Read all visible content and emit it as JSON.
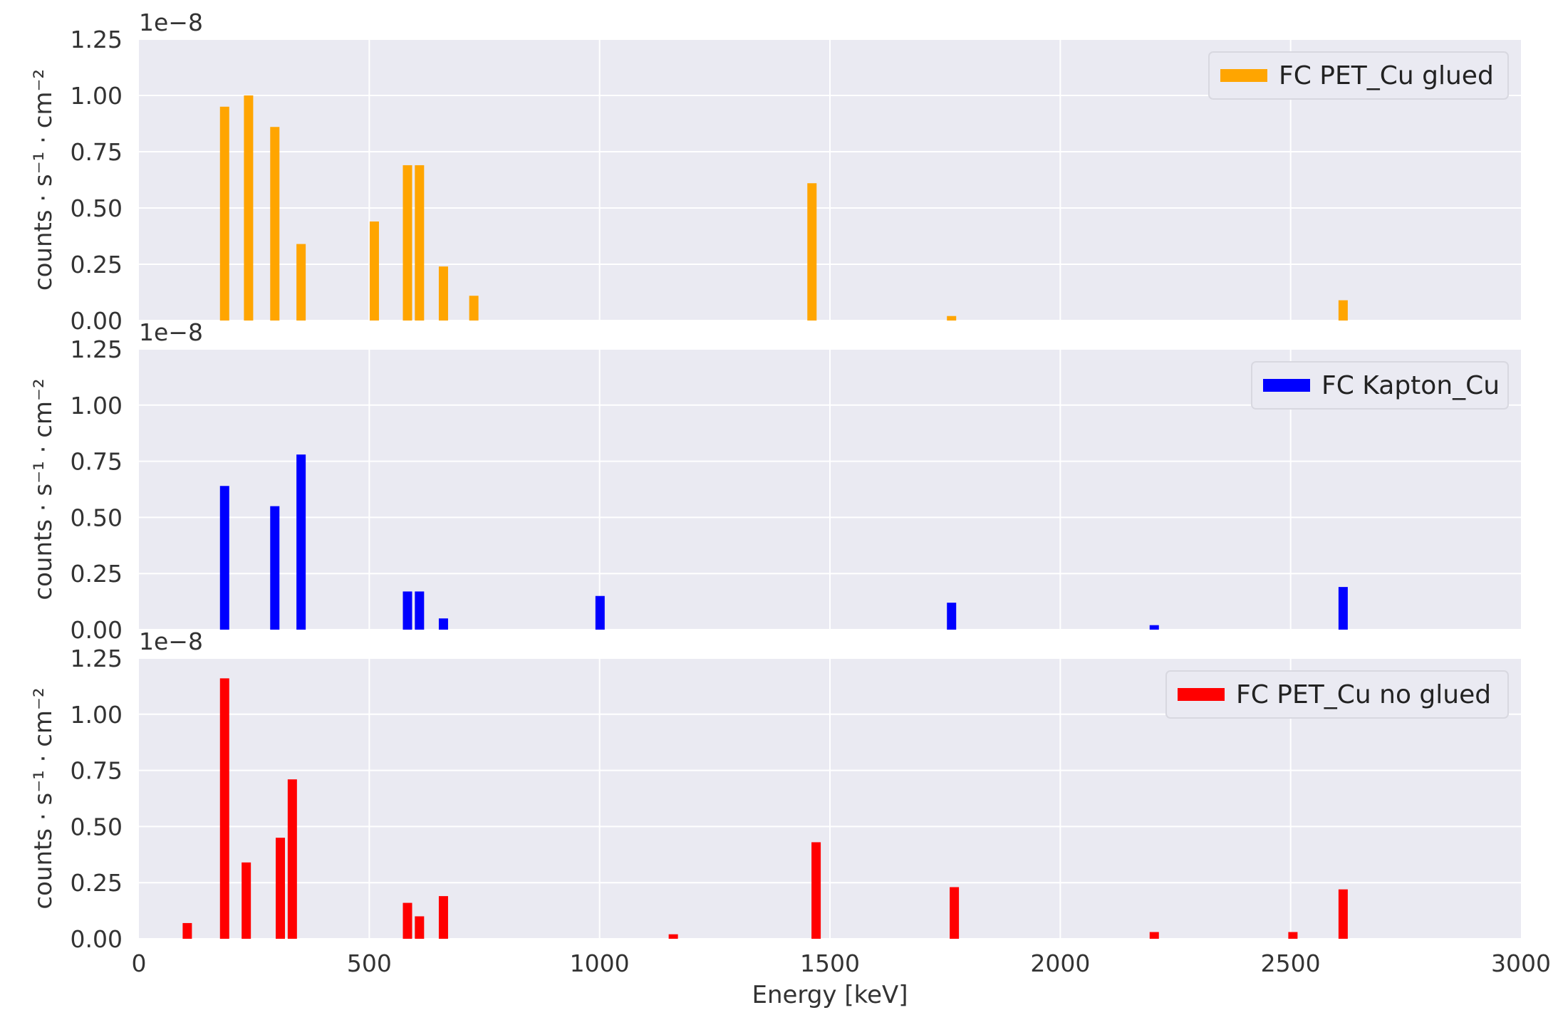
{
  "chart_data": [
    {
      "type": "bar",
      "scale_note": "1e−8",
      "ylabel": "counts · s⁻¹ · cm⁻²",
      "xlabel": "",
      "xlim": [
        0,
        3000
      ],
      "ylim": [
        0,
        1.25
      ],
      "yticks": [
        "0.00",
        "0.25",
        "0.50",
        "0.75",
        "1.00",
        "1.25"
      ],
      "xticks": [],
      "grid": true,
      "legend_position": "top-right",
      "series": [
        {
          "name": "FC PET_Cu glued",
          "color": "#FFA500",
          "x": [
            186,
            238,
            295,
            352,
            511,
            583,
            609,
            661,
            727,
            1461,
            1764,
            2614
          ],
          "values": [
            0.95,
            1.0,
            0.86,
            0.34,
            0.44,
            0.69,
            0.69,
            0.24,
            0.11,
            0.61,
            0.02,
            0.09
          ]
        }
      ]
    },
    {
      "type": "bar",
      "scale_note": "1e−8",
      "ylabel": "counts · s⁻¹ · cm⁻²",
      "xlabel": "",
      "xlim": [
        0,
        3000
      ],
      "ylim": [
        0,
        1.25
      ],
      "yticks": [
        "0.00",
        "0.25",
        "0.50",
        "0.75",
        "1.00",
        "1.25"
      ],
      "xticks": [],
      "grid": true,
      "legend_position": "top-right",
      "series": [
        {
          "name": "FC Kapton_Cu",
          "color": "#0000FF",
          "x": [
            186,
            295,
            352,
            583,
            609,
            661,
            1001,
            1764,
            2204,
            2614
          ],
          "values": [
            0.64,
            0.55,
            0.78,
            0.17,
            0.17,
            0.05,
            0.15,
            0.12,
            0.02,
            0.19
          ]
        }
      ]
    },
    {
      "type": "bar",
      "scale_note": "1e−8",
      "ylabel": "counts · s⁻¹ · cm⁻²",
      "xlabel": "Energy [keV]",
      "xlim": [
        0,
        3000
      ],
      "ylim": [
        0,
        1.25
      ],
      "yticks": [
        "0.00",
        "0.25",
        "0.50",
        "0.75",
        "1.00",
        "1.25"
      ],
      "xticks": [
        "0",
        "500",
        "1000",
        "1500",
        "2000",
        "2500",
        "3000"
      ],
      "grid": true,
      "legend_position": "top-right",
      "series": [
        {
          "name": "FC PET_Cu no glued",
          "color": "#FF0000",
          "x": [
            105,
            186,
            233,
            307,
            333,
            583,
            609,
            661,
            1160,
            1470,
            1770,
            2204,
            2505,
            2614
          ],
          "values": [
            0.07,
            1.16,
            0.34,
            0.45,
            0.71,
            0.16,
            0.1,
            0.19,
            0.02,
            0.43,
            0.23,
            0.03,
            0.03,
            0.22
          ]
        }
      ]
    }
  ]
}
